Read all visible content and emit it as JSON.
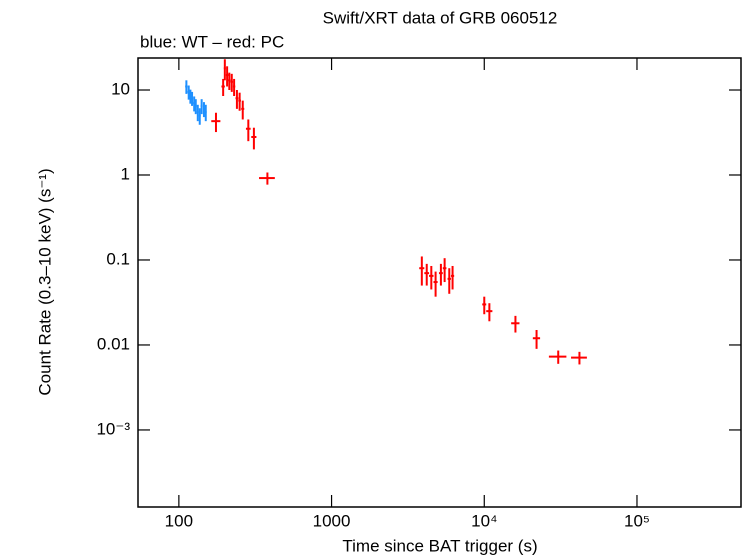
{
  "chart_data": {
    "type": "scatter",
    "title": "Swift/XRT data of GRB 060512",
    "subtitle": "blue: WT – red: PC",
    "x_label": "Time since BAT trigger (s)",
    "y_label": "Count Rate (0.3–10 keV) (s⁻¹)",
    "log_x": true,
    "log_y": true,
    "xlim": [
      54,
      480000
    ],
    "ylim": [
      0.000124,
      23.8
    ],
    "xticks": [
      100,
      1000,
      {
        "value": 10000,
        "label": "10⁴"
      },
      {
        "value": 100000,
        "label": "10⁵"
      }
    ],
    "yticks": [
      {
        "value": 0.001,
        "label": "10⁻³"
      },
      0.01,
      0.1,
      1,
      10
    ],
    "series": [
      {
        "color": "#1e90ff",
        "x": [
          112,
          116,
          119,
          122,
          126,
          129,
          133,
          137,
          141,
          146,
          150
        ],
        "xerr": [
          2,
          2,
          2,
          2,
          2,
          2,
          2,
          2,
          2,
          2,
          2
        ],
        "values": [
          11,
          9.5,
          8.5,
          8,
          7,
          6.5,
          5.5,
          5,
          6.5,
          6,
          5.5
        ],
        "yerr": [
          2,
          1.8,
          1.6,
          1.5,
          1.4,
          1.3,
          1.2,
          1.1,
          1.3,
          1.2,
          1.2
        ]
      },
      {
        "color": "#ff0000",
        "x": [
          175,
          195,
          200,
          207,
          214,
          222,
          230,
          240,
          250,
          262,
          285,
          310,
          380,
          3900,
          4200,
          4500,
          4800,
          5200,
          5500,
          5900,
          6200,
          10000,
          10800,
          16000,
          22000,
          30500,
          42000
        ],
        "xerr": [
          12,
          5,
          3,
          4,
          4,
          4,
          4,
          5,
          5,
          6,
          10,
          12,
          45,
          150,
          150,
          150,
          150,
          150,
          150,
          150,
          150,
          300,
          500,
          1000,
          1200,
          4000,
          5000
        ],
        "values": [
          4.3,
          11,
          18,
          15,
          13,
          12.5,
          11,
          8,
          7.5,
          6,
          3.5,
          2.8,
          0.92,
          0.08,
          0.07,
          0.065,
          0.055,
          0.07,
          0.08,
          0.06,
          0.065,
          0.03,
          0.025,
          0.018,
          0.012,
          0.0073,
          0.0071
        ],
        "yerr": [
          1.1,
          2.5,
          5,
          4,
          3,
          3,
          2.5,
          2,
          1.8,
          1.5,
          1,
          0.8,
          0.15,
          0.03,
          0.02,
          0.02,
          0.018,
          0.02,
          0.025,
          0.02,
          0.02,
          0.007,
          0.006,
          0.004,
          0.003,
          0.0013,
          0.0012
        ]
      }
    ]
  }
}
